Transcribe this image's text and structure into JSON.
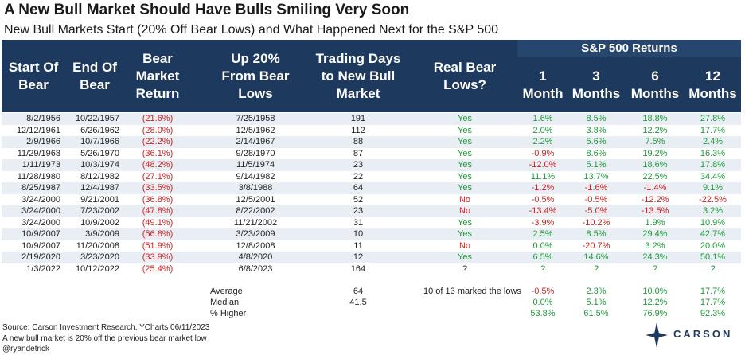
{
  "title": "A New Bull Market Should Have Bulls Smiling Very Soon",
  "subtitle": "New Bull Markets Start (20% Off Bear Lows) and What Happened Next for the S&P 500",
  "header": {
    "returns_group": "S&P 500 Returns",
    "columns": [
      "Start Of\nBear",
      "End Of\nBear",
      "Bear Market\nReturn",
      "Up 20%\nFrom Bear\nLows",
      "Trading Days\nto New Bull\nMarket",
      "Real Bear\nLows?",
      "1\nMonth",
      "3\nMonths",
      "6\nMonths",
      "12\nMonths"
    ]
  },
  "rows": [
    [
      "8/2/1956",
      "10/22/1957",
      "(21.6%)",
      "7/25/1958",
      "191",
      "Yes",
      "1.6%",
      "8.5%",
      "18.8%",
      "27.8%"
    ],
    [
      "12/12/1961",
      "6/26/1962",
      "(28.0%)",
      "12/5/1962",
      "112",
      "Yes",
      "2.0%",
      "3.8%",
      "12.2%",
      "17.7%"
    ],
    [
      "2/9/1966",
      "10/7/1966",
      "(22.2%)",
      "2/14/1967",
      "88",
      "Yes",
      "2.2%",
      "5.6%",
      "7.5%",
      "2.4%"
    ],
    [
      "11/29/1968",
      "5/26/1970",
      "(36.1%)",
      "9/28/1970",
      "87",
      "Yes",
      "-0.9%",
      "8.6%",
      "19.2%",
      "16.3%"
    ],
    [
      "1/11/1973",
      "10/3/1974",
      "(48.2%)",
      "11/5/1974",
      "23",
      "Yes",
      "-12.0%",
      "5.1%",
      "18.6%",
      "17.8%"
    ],
    [
      "11/28/1980",
      "8/12/1982",
      "(27.1%)",
      "9/14/1982",
      "22",
      "Yes",
      "11.1%",
      "13.7%",
      "22.5%",
      "34.4%"
    ],
    [
      "8/25/1987",
      "12/4/1987",
      "(33.5%)",
      "3/8/1988",
      "64",
      "Yes",
      "-1.2%",
      "-1.6%",
      "-1.4%",
      "9.1%"
    ],
    [
      "3/24/2000",
      "9/21/2001",
      "(36.8%)",
      "12/5/2001",
      "52",
      "No",
      "-0.5%",
      "-0.5%",
      "-12.2%",
      "-22.5%"
    ],
    [
      "3/24/2000",
      "7/23/2002",
      "(47.8%)",
      "8/22/2002",
      "23",
      "No",
      "-13.4%",
      "-5.0%",
      "-13.5%",
      "3.2%"
    ],
    [
      "3/24/2000",
      "10/9/2002",
      "(49.1%)",
      "11/21/2002",
      "31",
      "Yes",
      "-3.9%",
      "-10.2%",
      "1.9%",
      "10.9%"
    ],
    [
      "10/9/2007",
      "3/9/2009",
      "(56.8%)",
      "3/23/2009",
      "10",
      "Yes",
      "2.5%",
      "8.5%",
      "29.4%",
      "42.7%"
    ],
    [
      "10/9/2007",
      "11/20/2008",
      "(51.9%)",
      "12/8/2008",
      "11",
      "No",
      "0.0%",
      "-20.7%",
      "3.2%",
      "20.0%"
    ],
    [
      "2/19/2020",
      "3/23/2020",
      "(33.9%)",
      "4/8/2020",
      "12",
      "Yes",
      "6.5%",
      "14.6%",
      "24.3%",
      "50.1%"
    ],
    [
      "1/3/2022",
      "10/12/2022",
      "(25.4%)",
      "6/8/2023",
      "164",
      "?",
      "?",
      "?",
      "?",
      "?"
    ]
  ],
  "summary": [
    {
      "label": "Average",
      "days": "64",
      "lows": "10 of 13 marked the lows",
      "r1": "-0.5%",
      "r3": "2.3%",
      "r6": "10.0%",
      "r12": "17.7%"
    },
    {
      "label": "Median",
      "days": "41.5",
      "lows": "",
      "r1": "0.0%",
      "r3": "5.1%",
      "r6": "12.2%",
      "r12": "17.7%"
    },
    {
      "label": "% Higher",
      "days": "",
      "lows": "",
      "r1": "53.8%",
      "r3": "61.5%",
      "r6": "76.9%",
      "r12": "92.3%"
    }
  ],
  "footer": {
    "source": "Source: Carson Investment Research, YCharts 06/11/2023",
    "note": "A new bull market is 20% off the previous bear market low",
    "handle": "@ryandetrick"
  },
  "logo": {
    "text": "CARSON",
    "icon": "carson-compass-icon"
  },
  "colors": {
    "header": "#1d3a5e",
    "band": "#e9eef4",
    "negative": "#d42020",
    "positive": "#1f9a3a"
  }
}
